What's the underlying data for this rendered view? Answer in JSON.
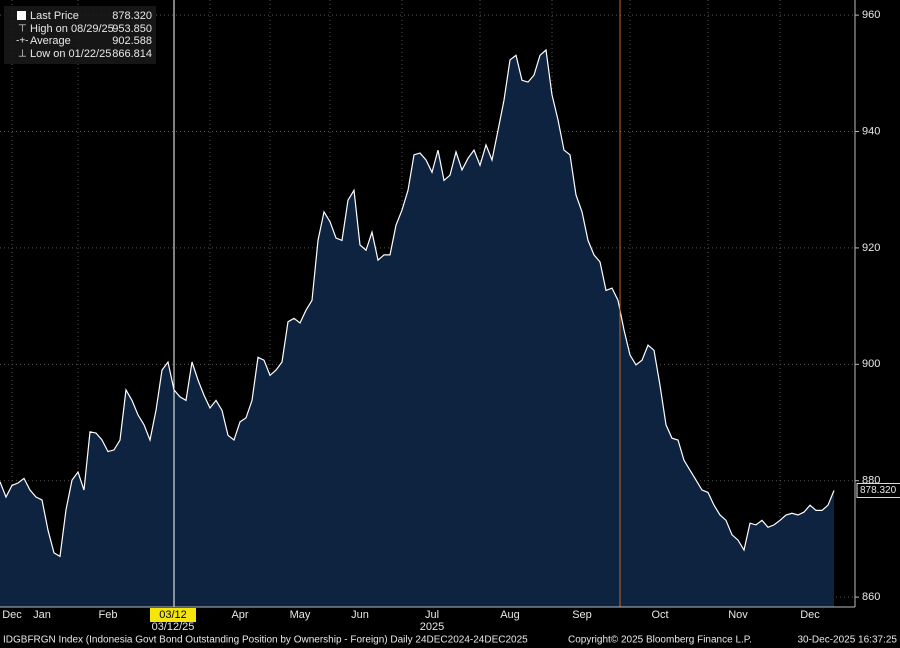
{
  "chart_data": {
    "type": "area",
    "legend": [
      {
        "label": "Last Price",
        "value": "878.320"
      },
      {
        "label": "High on 08/29/25",
        "value": "953.850"
      },
      {
        "label": "Average",
        "value": "902.588"
      },
      {
        "label": "Low on 01/22/25",
        "value": "866.814"
      }
    ],
    "cursor": {
      "label": "03/12",
      "date_label": "03/12/25"
    },
    "year_label": "2025",
    "footer": {
      "description": "IDGBFRGN Index (Indonesia Govt Bond Outstanding Position by Ownership - Foreign) Daily 24DEC2024-24DEC2025",
      "copyright": "Copyright© 2025 Bloomberg Finance L.P.",
      "timestamp": "30-Dec-2025 16:37:25"
    },
    "categories": [
      null,
      null,
      "Dec",
      null,
      null,
      null,
      null,
      "Jan",
      null,
      null,
      null,
      null,
      null,
      null,
      null,
      null,
      null,
      null,
      "Feb",
      null,
      null,
      null,
      null,
      null,
      null,
      null,
      null,
      null,
      null,
      null,
      null,
      null,
      null,
      null,
      null,
      null,
      null,
      null,
      null,
      null,
      "Apr",
      null,
      null,
      null,
      null,
      null,
      null,
      null,
      null,
      null,
      "May",
      null,
      null,
      null,
      null,
      null,
      null,
      null,
      null,
      null,
      "Jun",
      null,
      null,
      null,
      null,
      null,
      null,
      null,
      null,
      null,
      null,
      null,
      "Jul",
      null,
      null,
      null,
      null,
      null,
      null,
      null,
      null,
      null,
      null,
      null,
      null,
      "Aug",
      null,
      null,
      null,
      null,
      null,
      null,
      null,
      null,
      null,
      null,
      null,
      "Sep",
      null,
      null,
      null,
      null,
      null,
      null,
      null,
      null,
      null,
      null,
      null,
      null,
      "Oct",
      null,
      null,
      null,
      null,
      null,
      null,
      null,
      null,
      null,
      null,
      null,
      null,
      "Nov",
      null,
      null,
      null,
      null,
      null,
      null,
      null,
      null,
      null,
      null,
      null,
      "Dec",
      null,
      null,
      null,
      null
    ],
    "series": [
      {
        "name": "Last Price",
        "color": "#ffffff",
        "fill": "#0d2340",
        "values": [
          879.8,
          877.2,
          879.2,
          879.6,
          880.4,
          878.4,
          877.2,
          876.7,
          871.5,
          867.6,
          867.0,
          875.0,
          880.1,
          881.5,
          878.4,
          888.4,
          888.2,
          887.0,
          885.0,
          885.3,
          887.0,
          895.6,
          893.8,
          891.3,
          889.6,
          887.0,
          892.1,
          899.0,
          900.4,
          895.6,
          894.4,
          893.8,
          900.4,
          897.3,
          894.7,
          892.5,
          893.8,
          892.1,
          887.8,
          887.0,
          890.1,
          890.8,
          893.8,
          901.2,
          900.7,
          898.1,
          899.0,
          900.4,
          907.3,
          907.9,
          907.1,
          909.3,
          911.0,
          921.3,
          926.2,
          924.5,
          921.7,
          921.3,
          928.2,
          929.9,
          920.5,
          919.6,
          922.7,
          917.9,
          918.8,
          918.8,
          923.9,
          926.5,
          929.9,
          936.0,
          936.3,
          935.1,
          933.0,
          936.8,
          931.6,
          932.5,
          936.5,
          933.4,
          935.4,
          936.8,
          934.2,
          937.7,
          935.1,
          940.2,
          945.4,
          952.3,
          953.1,
          948.8,
          948.5,
          949.7,
          953.1,
          954.0,
          946.3,
          942.0,
          936.8,
          936.0,
          929.1,
          926.2,
          921.3,
          918.8,
          917.6,
          912.7,
          913.1,
          911.0,
          905.9,
          901.6,
          899.9,
          900.7,
          903.3,
          902.4,
          896.4,
          889.6,
          887.3,
          887.0,
          883.5,
          881.8,
          880.1,
          878.4,
          878.0,
          875.8,
          874.1,
          873.2,
          870.7,
          869.8,
          868.1,
          872.7,
          872.4,
          873.2,
          872.0,
          872.4,
          873.2,
          874.1,
          874.4,
          874.1,
          874.6,
          875.8,
          874.9,
          874.9,
          875.8,
          878.32
        ]
      }
    ],
    "ylim": [
      858.3,
      962.6
    ],
    "yticks": [
      860,
      880,
      900,
      920,
      940,
      960
    ],
    "grid": true
  }
}
